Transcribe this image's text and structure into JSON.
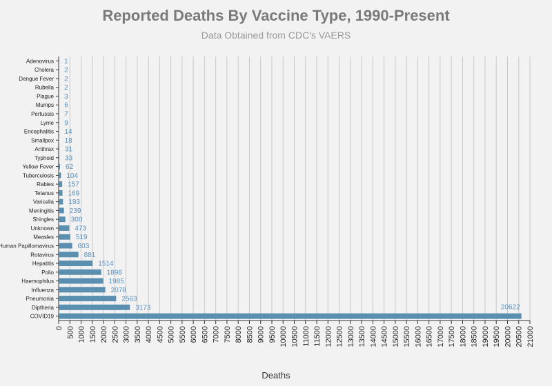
{
  "chart_data": {
    "type": "bar",
    "orientation": "horizontal",
    "title": "Reported Deaths By Vaccine Type, 1990-Present",
    "subtitle": "Data Obtained from CDC's VAERS",
    "xlabel": "Deaths",
    "ylabel": "",
    "xlim": [
      0,
      21000
    ],
    "x_ticks": [
      0,
      500,
      1000,
      1500,
      2000,
      2500,
      3000,
      3500,
      4000,
      4500,
      5000,
      5500,
      6000,
      6500,
      7000,
      7500,
      8000,
      8500,
      9000,
      9500,
      10000,
      10500,
      11000,
      11500,
      12000,
      12500,
      13000,
      13500,
      14000,
      14500,
      15000,
      15500,
      16000,
      16500,
      17000,
      17500,
      18000,
      18500,
      19000,
      19500,
      20000,
      20500,
      21000
    ],
    "grid": true,
    "bar_color": "#5b8fb0",
    "label_color": "#5a8fbb",
    "categories": [
      "Adenovirus",
      "Cholera",
      "Dengue Fever",
      "Rubella",
      "Plague",
      "Mumps",
      "Pertussis",
      "Lyme",
      "Encephalitis",
      "Smallpox",
      "Anthrax",
      "Typhoid",
      "Yellow Fever",
      "Tuberculosis",
      "Rabies",
      "Tetanus",
      "Varicella",
      "Meningitis",
      "Shingles",
      "Unknown",
      "Measles",
      "Human Papillomavirus",
      "Rotavirus",
      "Hepatitis",
      "Polio",
      "Haemophilus",
      "Influenza",
      "Pneumonia",
      "Diptheria",
      "COVID19"
    ],
    "values": [
      1,
      2,
      2,
      2,
      3,
      6,
      7,
      9,
      14,
      18,
      31,
      33,
      62,
      104,
      157,
      169,
      193,
      239,
      300,
      473,
      519,
      603,
      881,
      1514,
      1898,
      1985,
      2078,
      2563,
      3173,
      20622
    ]
  }
}
